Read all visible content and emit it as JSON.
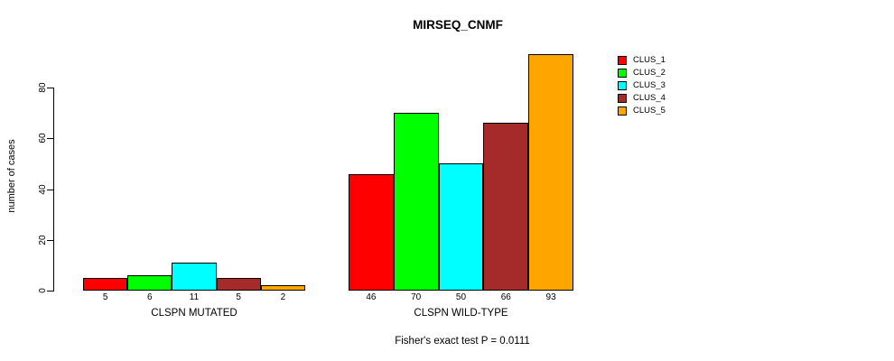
{
  "chart_data": {
    "type": "bar",
    "title": "MIRSEQ_CNMF",
    "ylabel": "number of cases",
    "xlabel": "",
    "annotation": "Fisher's exact test P = 0.0111",
    "yticks": [
      0,
      20,
      40,
      60,
      80
    ],
    "ylim": [
      0,
      93
    ],
    "grid": false,
    "legend_position": "right",
    "legend": [
      {
        "name": "CLUS_1",
        "color": "#FF0000"
      },
      {
        "name": "CLUS_2",
        "color": "#00FF00"
      },
      {
        "name": "CLUS_3",
        "color": "#00FFFF"
      },
      {
        "name": "CLUS_4",
        "color": "#A52A2A"
      },
      {
        "name": "CLUS_5",
        "color": "#FFA500"
      }
    ],
    "groups": [
      {
        "label": "CLSPN MUTATED",
        "bar_labels": [
          "5",
          "6",
          "11",
          "5",
          "2"
        ],
        "values": [
          5,
          6,
          11,
          5,
          2
        ]
      },
      {
        "label": "CLSPN WILD-TYPE",
        "bar_labels": [
          "46",
          "70",
          "50",
          "66",
          "93"
        ],
        "values": [
          46,
          70,
          50,
          66,
          93
        ]
      }
    ],
    "series_colors": [
      "#FF0000",
      "#00FF00",
      "#00FFFF",
      "#A52A2A",
      "#FFA500"
    ]
  }
}
